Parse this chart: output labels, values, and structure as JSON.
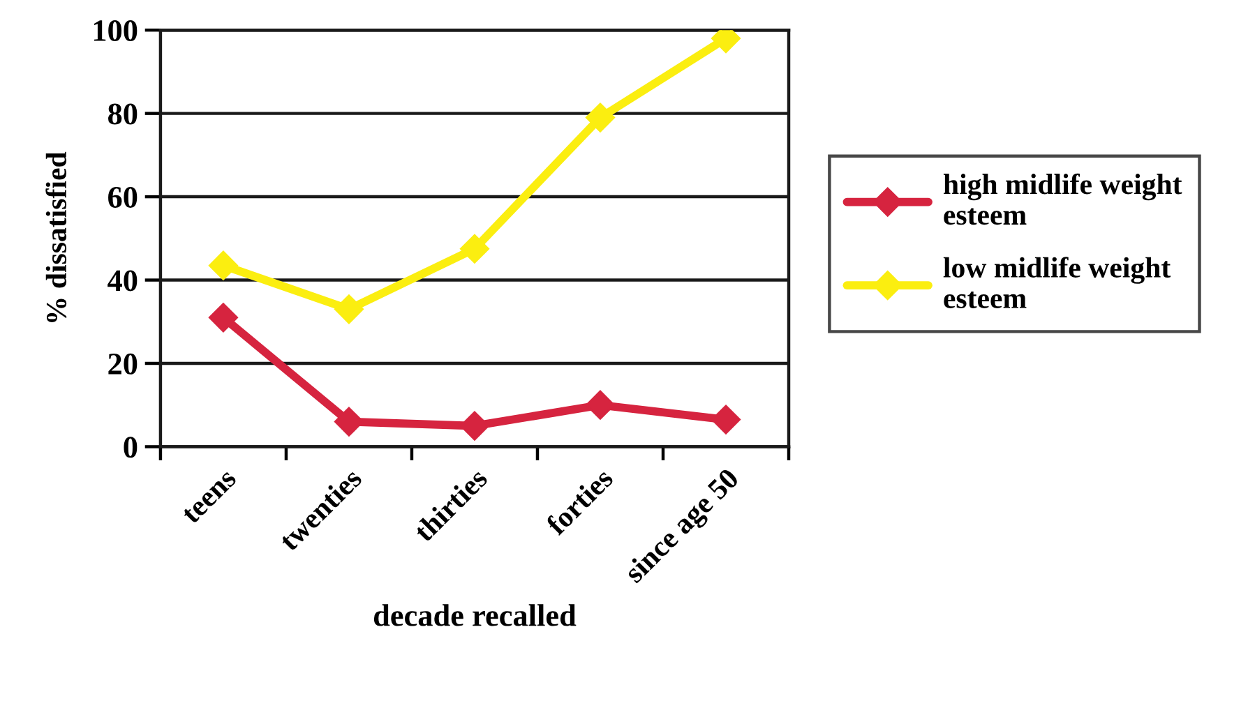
{
  "chart_data": {
    "type": "line",
    "xlabel": "decade recalled",
    "ylabel": "% dissatisfied",
    "categories": [
      "teens",
      "twenties",
      "thirties",
      "forties",
      "since age 50"
    ],
    "series": [
      {
        "name": "high midlife weight esteem",
        "color": "#d6243f",
        "values": [
          31,
          6,
          5,
          10,
          6.5
        ]
      },
      {
        "name": "low midlife weight esteem",
        "color": "#fbee10",
        "values": [
          43.5,
          33,
          47.5,
          79,
          98
        ]
      }
    ],
    "ylim": [
      0,
      100
    ],
    "yticks": [
      0,
      20,
      40,
      60,
      80,
      100
    ],
    "grid": "y",
    "legend": "right",
    "marker": "diamond",
    "line_style": "solid"
  }
}
